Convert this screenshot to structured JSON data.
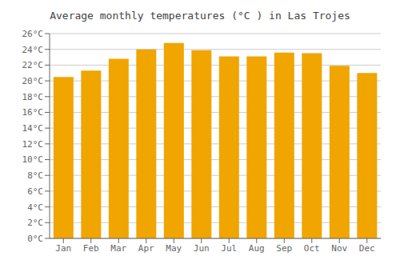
{
  "chart_data": {
    "type": "bar",
    "title": "Average monthly temperatures (°C ) in Las Trojes",
    "categories": [
      "Jan",
      "Feb",
      "Mar",
      "Apr",
      "May",
      "Jun",
      "Jul",
      "Aug",
      "Sep",
      "Oct",
      "Nov",
      "Dec"
    ],
    "values": [
      20.5,
      21.3,
      22.8,
      24.0,
      24.8,
      23.9,
      23.1,
      23.1,
      23.6,
      23.5,
      21.9,
      21.0
    ],
    "color": "#F0A500",
    "ylim": [
      0,
      26
    ],
    "yticks": [
      {
        "value": 0,
        "label": "0°C"
      },
      {
        "value": 2,
        "label": "2°C"
      },
      {
        "value": 4,
        "label": "4°C"
      },
      {
        "value": 6,
        "label": "6°C"
      },
      {
        "value": 8,
        "label": "8°C"
      },
      {
        "value": 10,
        "label": "10°C"
      },
      {
        "value": 12,
        "label": "12°C"
      },
      {
        "value": 14,
        "label": "14°C"
      },
      {
        "value": 16,
        "label": "16°C"
      },
      {
        "value": 18,
        "label": "18°C"
      },
      {
        "value": 20,
        "label": "20°C"
      },
      {
        "value": 22,
        "label": "22°C"
      },
      {
        "value": 24,
        "label": "24°C"
      },
      {
        "value": 26,
        "label": "26°C"
      }
    ],
    "grid": true
  }
}
